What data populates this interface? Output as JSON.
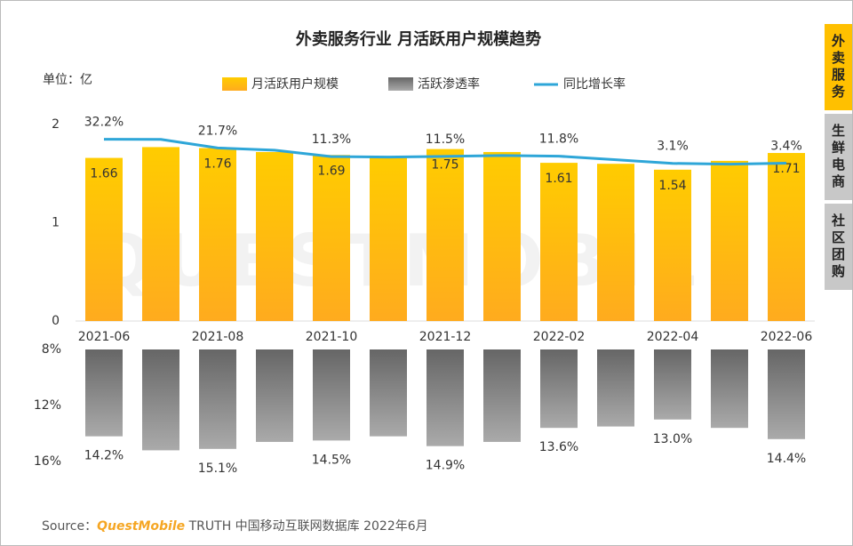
{
  "chart_data": [
    {
      "type": "bar",
      "title": "外卖服务行业 月活跃用户规模趋势",
      "unit": "单位：亿",
      "categories": [
        "2021-06",
        null,
        "2021-08",
        null,
        "2021-10",
        null,
        "2021-12",
        null,
        "2022-02",
        null,
        "2022-04",
        null,
        "2022-06"
      ],
      "series": [
        {
          "name": "月活跃用户规模",
          "color": "#ffc000",
          "values": [
            1.66,
            1.77,
            1.76,
            1.72,
            1.69,
            1.66,
            1.75,
            1.72,
            1.61,
            1.6,
            1.54,
            1.63,
            1.71
          ],
          "value_labels": [
            "1.66",
            null,
            "1.76",
            null,
            "1.69",
            null,
            "1.75",
            null,
            "1.61",
            null,
            "1.54",
            null,
            "1.71"
          ]
        },
        {
          "name": "同比增长率",
          "type": "line",
          "axis": "y2",
          "color": "#2ea6d8",
          "values": [
            32.2,
            32.0,
            21.7,
            19.0,
            11.3,
            10.7,
            11.5,
            12.6,
            11.8,
            7.5,
            3.1,
            2.1,
            3.4
          ],
          "value_labels": [
            "32.2%",
            null,
            "21.7%",
            null,
            "11.3%",
            null,
            "11.5%",
            null,
            "11.8%",
            null,
            "3.1%",
            null,
            "3.4%"
          ]
        }
      ],
      "ylim": [
        0,
        2
      ],
      "yticks": [
        0,
        1,
        2
      ],
      "y2lim": [
        -187,
        50
      ]
    },
    {
      "type": "bar",
      "inverted": true,
      "series": [
        {
          "name": "活跃渗透率",
          "color": "#808080",
          "values": [
            14.2,
            15.2,
            15.1,
            14.6,
            14.5,
            14.2,
            14.9,
            14.6,
            13.6,
            13.5,
            13.0,
            13.6,
            14.4
          ],
          "value_labels": [
            "14.2%",
            null,
            "15.1%",
            null,
            "14.5%",
            null,
            "14.9%",
            null,
            "13.6%",
            null,
            "13.0%",
            null,
            "14.4%"
          ]
        }
      ],
      "ylim": [
        8,
        16
      ],
      "yticks": [
        {
          "value": 8,
          "label": "8%"
        },
        {
          "value": 12,
          "label": "12%"
        },
        {
          "value": 16,
          "label": "16%"
        }
      ]
    }
  ],
  "tabs": [
    "外卖服务",
    "生鲜电商",
    "社区团购"
  ],
  "watermark": "QUESTMOBILE",
  "source": {
    "prefix": "Source：",
    "brand": "QuestMobile",
    "text": "TRUTH 中国移动互联网数据库 2022年6月"
  }
}
